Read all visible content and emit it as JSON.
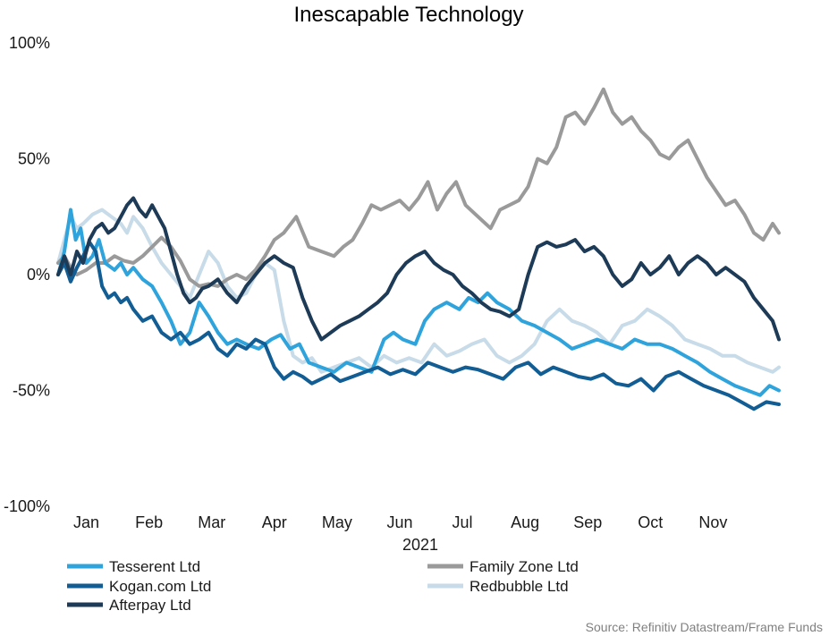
{
  "chart_data": {
    "type": "line",
    "title": "Inescapable Technology",
    "xlabel": "2021",
    "ylabel": "",
    "source": "Source: Refinitiv Datastream/Frame Funds",
    "ylim": [
      -100,
      100
    ],
    "yticks": [
      100,
      50,
      0,
      -50,
      -100
    ],
    "ytick_labels": [
      "100%",
      "50%",
      "0%",
      "-50%",
      "-100%"
    ],
    "xlim": [
      0,
      11.6
    ],
    "x_unit": "months since 1 Jan 2021",
    "xtick_labels": [
      "Jan",
      "Feb",
      "Mar",
      "Apr",
      "May",
      "Jun",
      "Jul",
      "Aug",
      "Sep",
      "Oct",
      "Nov"
    ],
    "grid": false,
    "legend_position": "bottom",
    "series": [
      {
        "name": "Tesserent Ltd",
        "color": "#2ea3dc",
        "x": [
          0.0,
          0.1,
          0.2,
          0.28,
          0.36,
          0.45,
          0.55,
          0.65,
          0.75,
          0.9,
          1.0,
          1.1,
          1.2,
          1.35,
          1.5,
          1.65,
          1.8,
          1.95,
          2.1,
          2.25,
          2.4,
          2.55,
          2.7,
          2.85,
          3.0,
          3.2,
          3.4,
          3.55,
          3.7,
          3.85,
          4.0,
          4.2,
          4.4,
          4.6,
          4.8,
          5.0,
          5.1,
          5.2,
          5.35,
          5.5,
          5.7,
          5.85,
          6.0,
          6.2,
          6.4,
          6.55,
          6.7,
          6.85,
          7.0,
          7.2,
          7.4,
          7.6,
          7.8,
          8.0,
          8.2,
          8.4,
          8.6,
          8.8,
          9.0,
          9.2,
          9.4,
          9.6,
          9.8,
          10.0,
          10.2,
          10.4,
          10.6,
          10.8,
          11.0,
          11.2,
          11.35,
          11.5
        ],
        "y": [
          0,
          10,
          28,
          15,
          20,
          5,
          8,
          15,
          5,
          2,
          5,
          0,
          3,
          -2,
          -5,
          -12,
          -20,
          -30,
          -25,
          -12,
          -18,
          -25,
          -30,
          -28,
          -30,
          -32,
          -28,
          -26,
          -32,
          -30,
          -38,
          -40,
          -42,
          -38,
          -40,
          -42,
          -35,
          -28,
          -25,
          -28,
          -30,
          -20,
          -15,
          -12,
          -15,
          -10,
          -12,
          -8,
          -12,
          -15,
          -20,
          -22,
          -25,
          -28,
          -32,
          -30,
          -28,
          -30,
          -32,
          -28,
          -30,
          -30,
          -32,
          -35,
          -38,
          -42,
          -45,
          -48,
          -50,
          -52,
          -48,
          -50
        ]
      },
      {
        "name": "Family Zone Ltd",
        "color": "#9a9a9a",
        "x": [
          0.0,
          0.1,
          0.2,
          0.3,
          0.45,
          0.6,
          0.75,
          0.9,
          1.05,
          1.2,
          1.35,
          1.5,
          1.65,
          1.8,
          1.95,
          2.1,
          2.25,
          2.4,
          2.55,
          2.7,
          2.85,
          3.0,
          3.15,
          3.3,
          3.45,
          3.6,
          3.8,
          4.0,
          4.2,
          4.4,
          4.55,
          4.7,
          4.85,
          5.0,
          5.15,
          5.3,
          5.45,
          5.6,
          5.75,
          5.9,
          6.05,
          6.2,
          6.35,
          6.5,
          6.7,
          6.9,
          7.05,
          7.2,
          7.35,
          7.5,
          7.65,
          7.8,
          7.95,
          8.1,
          8.25,
          8.4,
          8.55,
          8.7,
          8.85,
          9.0,
          9.15,
          9.3,
          9.45,
          9.6,
          9.75,
          9.9,
          10.05,
          10.2,
          10.35,
          10.5,
          10.65,
          10.8,
          10.95,
          11.1,
          11.25,
          11.4,
          11.5
        ],
        "y": [
          5,
          8,
          3,
          0,
          2,
          5,
          5,
          8,
          6,
          5,
          8,
          12,
          16,
          12,
          6,
          -2,
          -5,
          -4,
          -5,
          -2,
          0,
          -2,
          2,
          8,
          15,
          18,
          25,
          12,
          10,
          8,
          12,
          15,
          22,
          30,
          28,
          30,
          32,
          28,
          33,
          40,
          28,
          35,
          40,
          30,
          25,
          20,
          28,
          30,
          32,
          38,
          50,
          48,
          55,
          68,
          70,
          65,
          72,
          80,
          70,
          65,
          68,
          62,
          58,
          52,
          50,
          55,
          58,
          50,
          42,
          36,
          30,
          32,
          26,
          18,
          15,
          22,
          18
        ]
      },
      {
        "name": "Kogan.com Ltd",
        "color": "#125d93",
        "x": [
          0.0,
          0.1,
          0.2,
          0.3,
          0.4,
          0.5,
          0.6,
          0.7,
          0.8,
          0.9,
          1.0,
          1.1,
          1.2,
          1.35,
          1.5,
          1.65,
          1.8,
          1.95,
          2.1,
          2.25,
          2.4,
          2.55,
          2.7,
          2.85,
          3.0,
          3.15,
          3.3,
          3.45,
          3.6,
          3.75,
          3.9,
          4.05,
          4.2,
          4.35,
          4.5,
          4.7,
          4.9,
          5.1,
          5.3,
          5.5,
          5.7,
          5.9,
          6.1,
          6.3,
          6.5,
          6.7,
          6.9,
          7.1,
          7.3,
          7.5,
          7.7,
          7.9,
          8.1,
          8.3,
          8.5,
          8.7,
          8.9,
          9.1,
          9.3,
          9.5,
          9.7,
          9.9,
          10.1,
          10.3,
          10.5,
          10.7,
          10.9,
          11.1,
          11.3,
          11.5
        ],
        "y": [
          0,
          5,
          -3,
          3,
          8,
          14,
          10,
          -5,
          -10,
          -8,
          -12,
          -10,
          -15,
          -20,
          -18,
          -25,
          -28,
          -25,
          -30,
          -28,
          -25,
          -32,
          -35,
          -30,
          -32,
          -28,
          -30,
          -40,
          -45,
          -42,
          -44,
          -47,
          -45,
          -43,
          -46,
          -44,
          -42,
          -40,
          -43,
          -41,
          -43,
          -38,
          -40,
          -42,
          -40,
          -41,
          -43,
          -45,
          -40,
          -38,
          -43,
          -40,
          -42,
          -44,
          -45,
          -43,
          -47,
          -48,
          -45,
          -50,
          -44,
          -42,
          -45,
          -48,
          -50,
          -52,
          -55,
          -58,
          -55,
          -56
        ]
      },
      {
        "name": "Redbubble Ltd",
        "color": "#c8dbe8",
        "x": [
          0.0,
          0.1,
          0.2,
          0.3,
          0.4,
          0.55,
          0.7,
          0.85,
          1.0,
          1.1,
          1.2,
          1.35,
          1.5,
          1.65,
          1.8,
          1.95,
          2.1,
          2.25,
          2.4,
          2.55,
          2.7,
          2.85,
          3.0,
          3.15,
          3.3,
          3.45,
          3.6,
          3.75,
          3.9,
          4.05,
          4.2,
          4.4,
          4.6,
          4.8,
          5.0,
          5.2,
          5.4,
          5.6,
          5.8,
          6.0,
          6.2,
          6.4,
          6.6,
          6.8,
          7.0,
          7.2,
          7.4,
          7.6,
          7.8,
          8.0,
          8.2,
          8.4,
          8.6,
          8.8,
          9.0,
          9.2,
          9.4,
          9.6,
          9.8,
          10.0,
          10.2,
          10.4,
          10.6,
          10.8,
          11.0,
          11.2,
          11.4,
          11.5
        ],
        "y": [
          5,
          15,
          25,
          20,
          22,
          26,
          28,
          25,
          22,
          18,
          25,
          20,
          12,
          5,
          0,
          -5,
          -10,
          0,
          10,
          5,
          -5,
          -10,
          -8,
          0,
          5,
          2,
          -20,
          -35,
          -38,
          -36,
          -42,
          -40,
          -38,
          -36,
          -40,
          -35,
          -38,
          -36,
          -38,
          -30,
          -35,
          -33,
          -30,
          -28,
          -35,
          -38,
          -35,
          -30,
          -20,
          -15,
          -20,
          -22,
          -25,
          -30,
          -22,
          -20,
          -15,
          -18,
          -22,
          -28,
          -30,
          -32,
          -35,
          -35,
          -38,
          -40,
          -42,
          -40
        ]
      },
      {
        "name": "Afterpay Ltd",
        "color": "#1d3a56",
        "x": [
          0.0,
          0.1,
          0.2,
          0.3,
          0.4,
          0.5,
          0.6,
          0.7,
          0.8,
          0.9,
          1.0,
          1.1,
          1.2,
          1.3,
          1.4,
          1.5,
          1.6,
          1.7,
          1.8,
          1.9,
          2.0,
          2.1,
          2.2,
          2.3,
          2.4,
          2.55,
          2.7,
          2.85,
          3.0,
          3.15,
          3.3,
          3.45,
          3.6,
          3.75,
          3.9,
          4.05,
          4.2,
          4.35,
          4.5,
          4.65,
          4.8,
          4.95,
          5.1,
          5.25,
          5.4,
          5.55,
          5.7,
          5.85,
          6.0,
          6.15,
          6.3,
          6.45,
          6.6,
          6.75,
          6.9,
          7.05,
          7.2,
          7.35,
          7.5,
          7.65,
          7.8,
          7.95,
          8.1,
          8.25,
          8.4,
          8.55,
          8.7,
          8.85,
          9.0,
          9.15,
          9.3,
          9.45,
          9.6,
          9.75,
          9.9,
          10.05,
          10.2,
          10.35,
          10.5,
          10.65,
          10.8,
          10.95,
          11.1,
          11.25,
          11.4,
          11.5
        ],
        "y": [
          0,
          8,
          0,
          10,
          5,
          15,
          20,
          22,
          18,
          20,
          25,
          30,
          33,
          28,
          25,
          30,
          25,
          20,
          10,
          0,
          -8,
          -12,
          -10,
          -6,
          -5,
          -2,
          -8,
          -12,
          -5,
          0,
          5,
          8,
          5,
          3,
          -10,
          -20,
          -28,
          -25,
          -22,
          -20,
          -18,
          -15,
          -12,
          -8,
          0,
          5,
          8,
          10,
          5,
          2,
          0,
          -5,
          -8,
          -12,
          -15,
          -16,
          -18,
          -15,
          0,
          12,
          14,
          12,
          13,
          15,
          10,
          12,
          8,
          0,
          -5,
          -2,
          5,
          0,
          3,
          8,
          0,
          5,
          8,
          5,
          0,
          3,
          0,
          -3,
          -10,
          -15,
          -20,
          -28
        ]
      }
    ]
  }
}
